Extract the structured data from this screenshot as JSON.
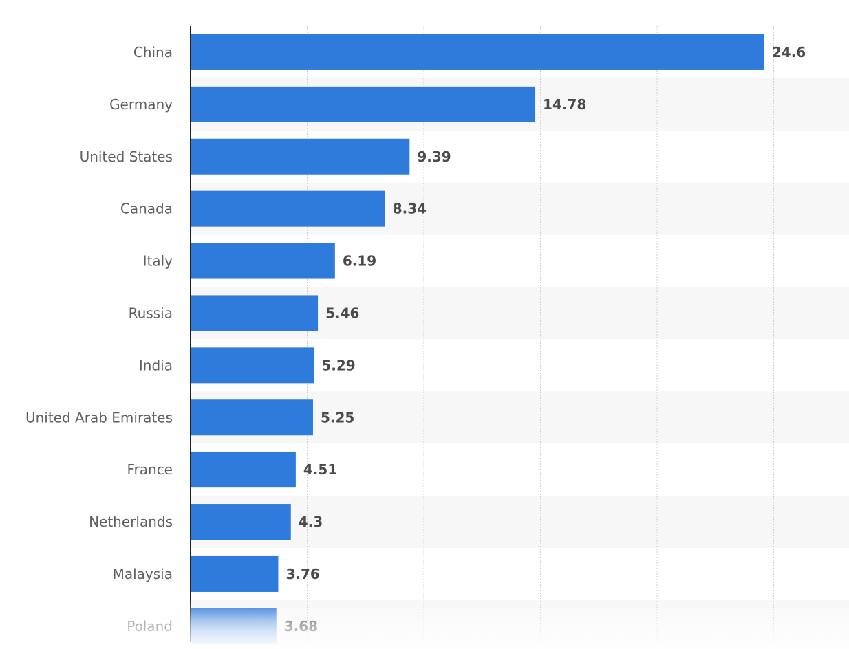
{
  "chart_data": {
    "type": "bar",
    "orientation": "horizontal",
    "categories": [
      "China",
      "Germany",
      "United States",
      "Canada",
      "Italy",
      "Russia",
      "India",
      "United Arab Emirates",
      "France",
      "Netherlands",
      "Malaysia",
      "Poland"
    ],
    "values": [
      24.6,
      14.78,
      9.39,
      8.34,
      6.19,
      5.46,
      5.29,
      5.25,
      4.51,
      4.3,
      3.76,
      3.68
    ],
    "value_labels": [
      "24.6",
      "14.78",
      "9.39",
      "8.34",
      "6.19",
      "5.46",
      "5.29",
      "5.25",
      "4.51",
      "4.3",
      "3.76",
      "3.68"
    ],
    "xlim": [
      0,
      25
    ],
    "grid": true,
    "gridline_values": [
      5,
      10,
      15,
      20,
      25
    ],
    "xlabel": "",
    "ylabel": "",
    "title": "",
    "colors": {
      "bar": "#2f7bdb",
      "stripe": "#f7f7f7",
      "grid": "#cfcfcf",
      "axis": "#222222"
    }
  }
}
